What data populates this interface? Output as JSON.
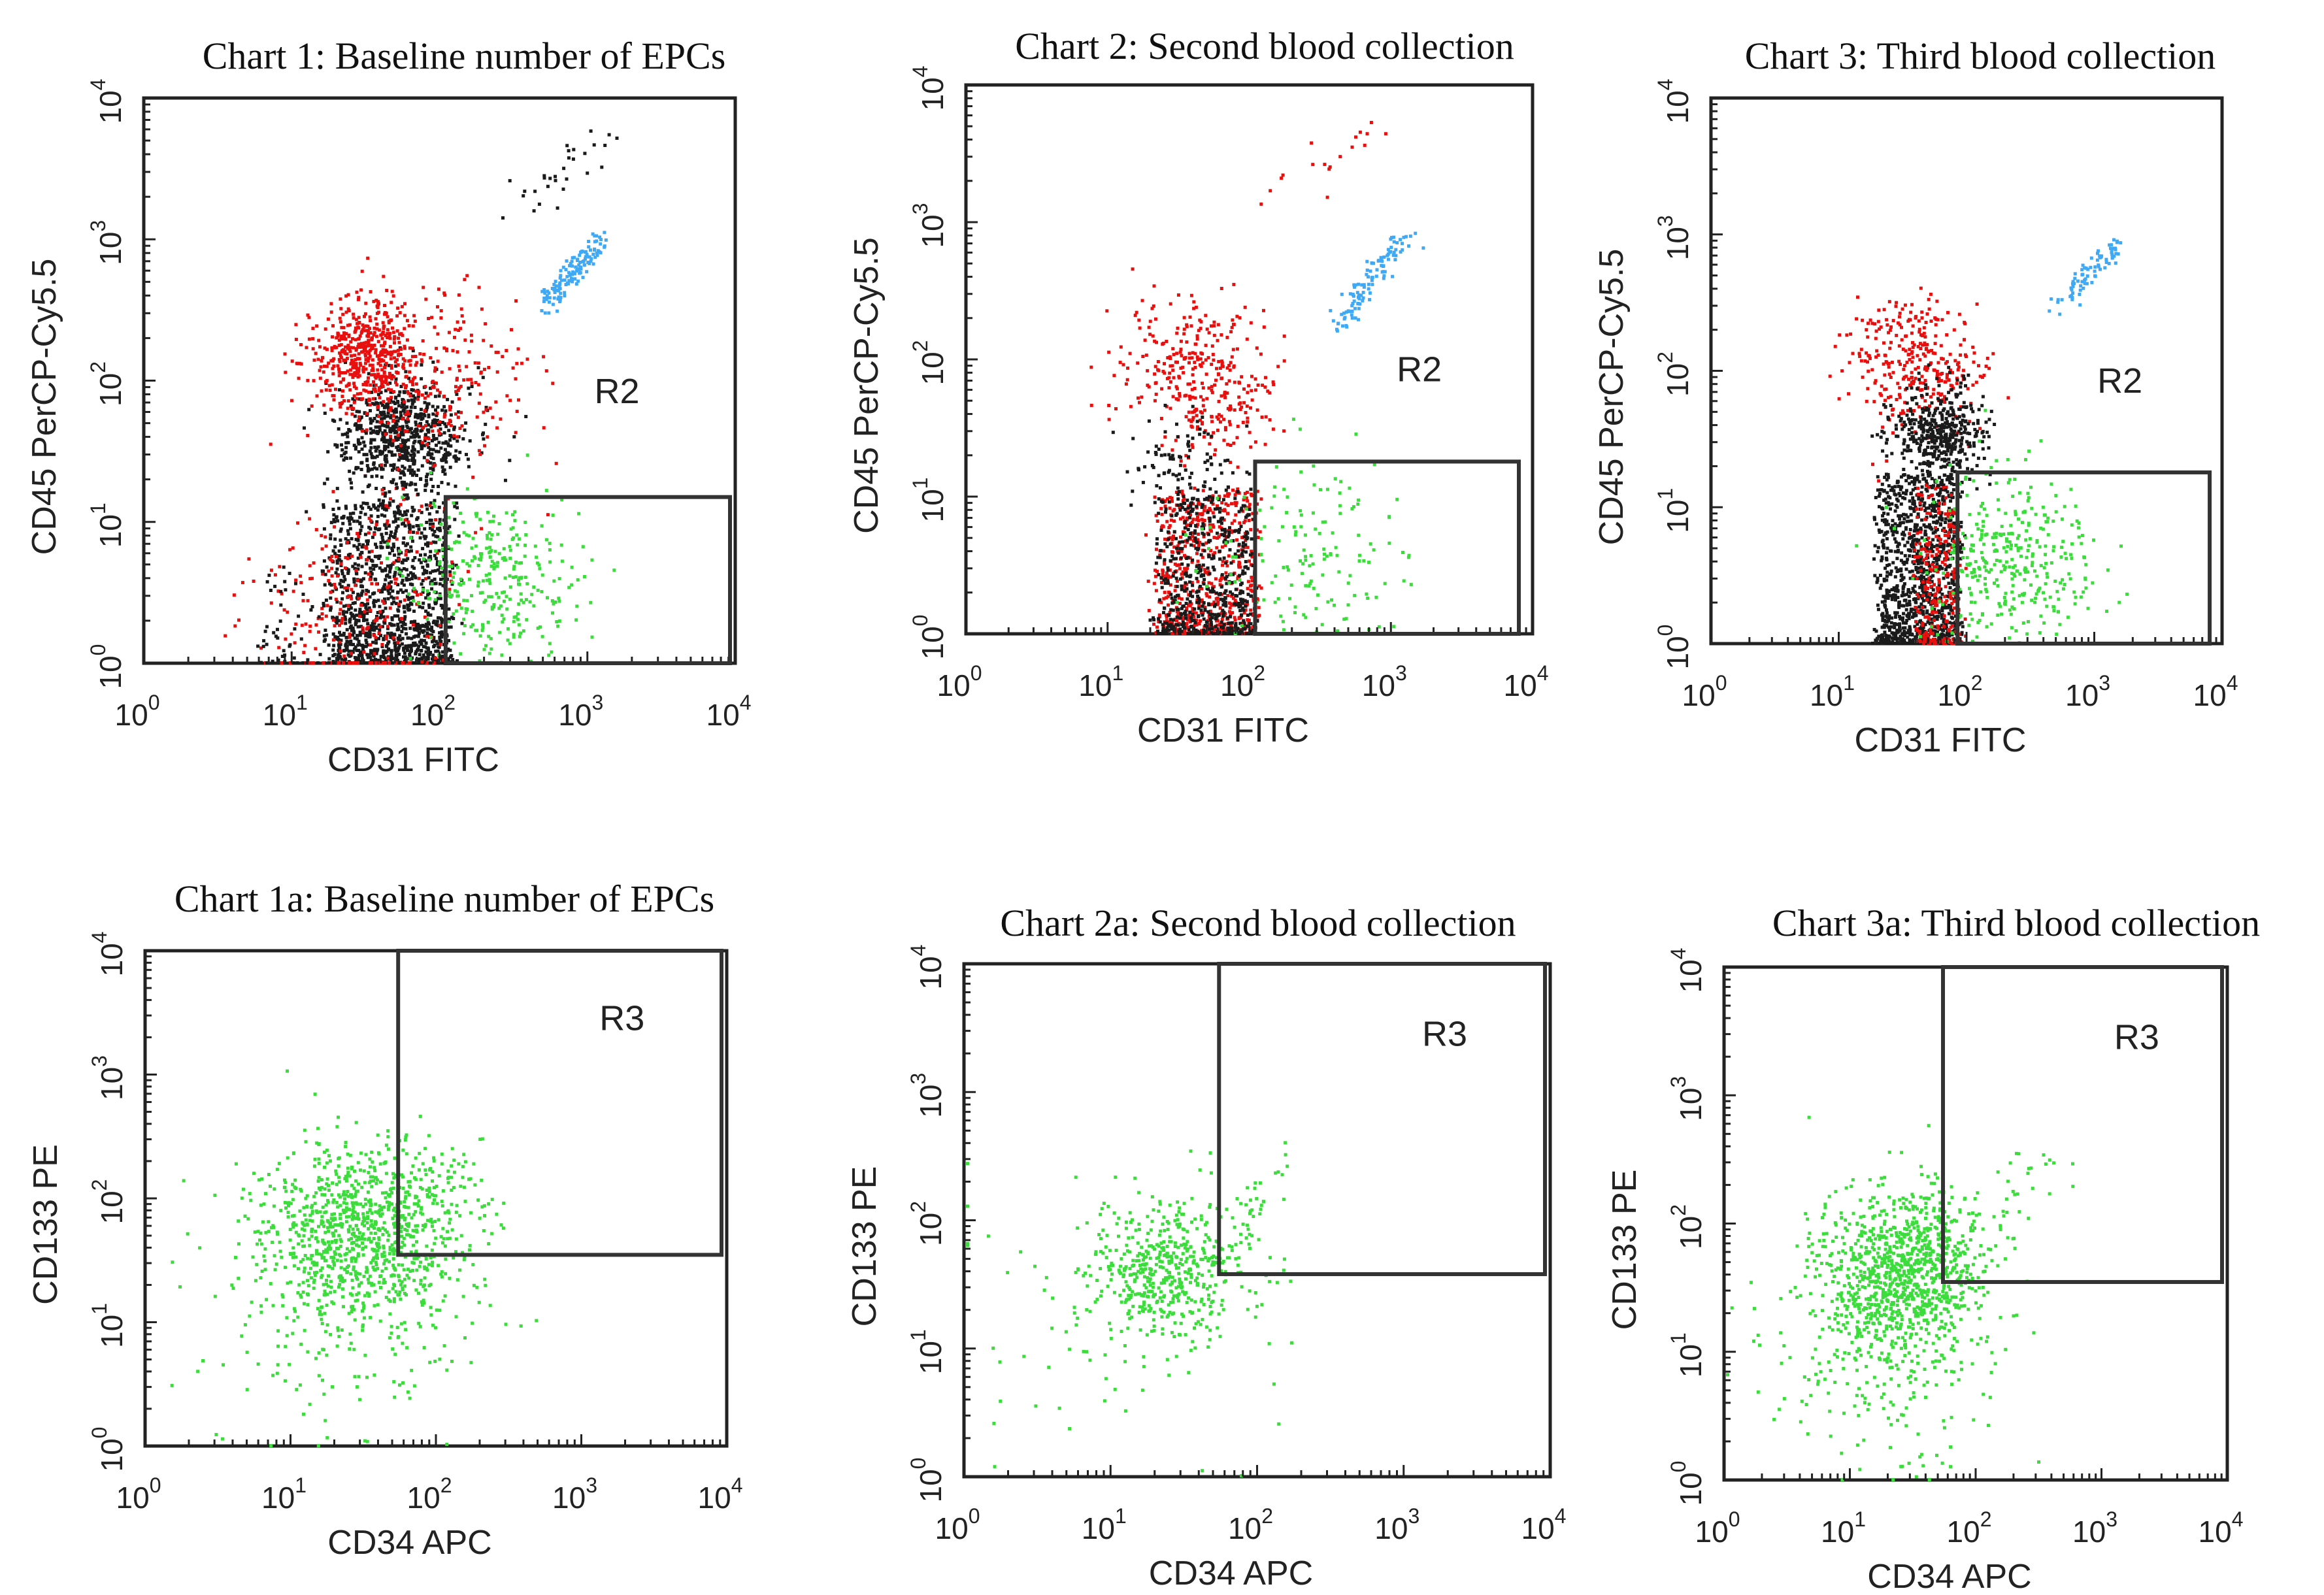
{
  "colors": {
    "black_events": "#1a1a1a",
    "red_events": "#e8100f",
    "green_events": "#3ddc3d",
    "blue_events": "#3fa9f5",
    "frame": "#222222"
  },
  "chart_data": [
    {
      "id": "chart1",
      "type": "scatter",
      "title": "Chart 1: Baseline number of EPCs",
      "xlabel": "CD31 FITC",
      "ylabel": "CD45 PerCP-Cy5.5",
      "scale": "log",
      "xlim": [
        1,
        10000
      ],
      "ylim": [
        1,
        10000
      ],
      "x_ticks": [
        "10",
        "10",
        "10",
        "10",
        "10"
      ],
      "x_tick_exps": [
        "0",
        "1",
        "2",
        "3",
        "4"
      ],
      "y_ticks": [
        "10",
        "10",
        "10",
        "10",
        "10"
      ],
      "y_tick_exps": [
        "0",
        "1",
        "2",
        "3",
        "4"
      ],
      "gate": {
        "name": "R2",
        "x_range": [
          110,
          10000
        ],
        "y_range": [
          1,
          15
        ]
      },
      "populations": [
        {
          "color": "black",
          "shape": "band",
          "x": [
            18,
            120
          ],
          "y": [
            1,
            14
          ],
          "count": 1200,
          "spread": 0.2
        },
        {
          "color": "red",
          "shape": "blob",
          "x": [
            30,
            1
          ],
          "y": [
            3,
            1
          ],
          "count": 260,
          "spread": 0.35
        },
        {
          "color": "black",
          "shape": "blob",
          "x": [
            55,
            1
          ],
          "y": [
            40,
            1
          ],
          "count": 700,
          "spread": 0.22
        },
        {
          "color": "red",
          "shape": "blob",
          "x": [
            30,
            1
          ],
          "y": [
            150,
            1
          ],
          "count": 500,
          "spread": 0.2
        },
        {
          "color": "red",
          "shape": "blob",
          "x": [
            100,
            1
          ],
          "y": [
            100,
            1
          ],
          "count": 220,
          "spread": 0.3
        },
        {
          "color": "green",
          "shape": "blob",
          "x": [
            220,
            1
          ],
          "y": [
            4,
            1
          ],
          "count": 320,
          "spread": 0.3
        },
        {
          "color": "blue",
          "shape": "line",
          "x": [
            500,
            1200
          ],
          "y": [
            350,
            1000
          ],
          "count": 130,
          "spread": 0.04
        },
        {
          "color": "black",
          "shape": "line",
          "x": [
            300,
            1500
          ],
          "y": [
            1500,
            6000
          ],
          "count": 30,
          "spread": 0.08
        },
        {
          "color": "black",
          "shape": "band",
          "x": [
            6,
            20
          ],
          "y": [
            1,
            5
          ],
          "count": 60,
          "spread": 0.2
        }
      ]
    },
    {
      "id": "chart2",
      "type": "scatter",
      "title": "Chart 2: Second blood collection",
      "xlabel": "CD31 FITC",
      "ylabel": "CD45 PerCP-Cy5.5",
      "scale": "log",
      "xlim": [
        1,
        10000
      ],
      "ylim": [
        1,
        10000
      ],
      "x_ticks": [
        "10",
        "10",
        "10",
        "10",
        "10"
      ],
      "x_tick_exps": [
        "0",
        "1",
        "2",
        "3",
        "4"
      ],
      "y_ticks": [
        "10",
        "10",
        "10",
        "10",
        "10"
      ],
      "y_tick_exps": [
        "0",
        "1",
        "2",
        "3",
        "4"
      ],
      "gate": {
        "name": "R2",
        "x_range": [
          110,
          8000
        ],
        "y_range": [
          1,
          18
        ]
      },
      "populations": [
        {
          "color": "red",
          "shape": "band",
          "x": [
            22,
            110
          ],
          "y": [
            1,
            12
          ],
          "count": 650,
          "spread": 0.2
        },
        {
          "color": "black",
          "shape": "band",
          "x": [
            22,
            100
          ],
          "y": [
            1,
            10
          ],
          "count": 500,
          "spread": 0.2
        },
        {
          "color": "red",
          "shape": "blob",
          "x": [
            35,
            1
          ],
          "y": [
            100,
            1
          ],
          "count": 220,
          "spread": 0.25
        },
        {
          "color": "red",
          "shape": "blob",
          "x": [
            60,
            1
          ],
          "y": [
            45,
            1
          ],
          "count": 120,
          "spread": 0.2
        },
        {
          "color": "black",
          "shape": "blob",
          "x": [
            35,
            1
          ],
          "y": [
            15,
            1
          ],
          "count": 120,
          "spread": 0.2
        },
        {
          "color": "green",
          "shape": "blob",
          "x": [
            250,
            1
          ],
          "y": [
            4,
            1
          ],
          "count": 150,
          "spread": 0.35
        },
        {
          "color": "blue",
          "shape": "line",
          "x": [
            400,
            1200
          ],
          "y": [
            180,
            800
          ],
          "count": 110,
          "spread": 0.04
        },
        {
          "color": "red",
          "shape": "line",
          "x": [
            150,
            900
          ],
          "y": [
            1500,
            6000
          ],
          "count": 18,
          "spread": 0.08
        }
      ]
    },
    {
      "id": "chart3",
      "type": "scatter",
      "title": "Chart 3: Third blood collection",
      "xlabel": "CD31 FITC",
      "ylabel": "CD45 PerCP-Cy5.5",
      "scale": "log",
      "xlim": [
        1,
        10000
      ],
      "ylim": [
        1,
        10000
      ],
      "x_ticks": [
        "10",
        "10",
        "10",
        "10",
        "10"
      ],
      "x_tick_exps": [
        "0",
        "1",
        "2",
        "3",
        "4"
      ],
      "y_ticks": [
        "10",
        "10",
        "10",
        "10",
        "10"
      ],
      "y_tick_exps": [
        "0",
        "1",
        "2",
        "3",
        "4"
      ],
      "gate": {
        "name": "R2",
        "x_range": [
          85,
          8000
        ],
        "y_range": [
          1,
          18
        ]
      },
      "populations": [
        {
          "color": "black",
          "shape": "band",
          "x": [
            20,
            85
          ],
          "y": [
            1,
            18
          ],
          "count": 1100,
          "spread": 0.2
        },
        {
          "color": "red",
          "shape": "band",
          "x": [
            40,
            85
          ],
          "y": [
            1,
            15
          ],
          "count": 260,
          "spread": 0.2
        },
        {
          "color": "red",
          "shape": "blob",
          "x": [
            40,
            1
          ],
          "y": [
            110,
            1
          ],
          "count": 320,
          "spread": 0.25
        },
        {
          "color": "black",
          "shape": "blob",
          "x": [
            60,
            1
          ],
          "y": [
            35,
            1
          ],
          "count": 450,
          "spread": 0.18
        },
        {
          "color": "green",
          "shape": "blob",
          "x": [
            220,
            1
          ],
          "y": [
            4,
            1
          ],
          "count": 360,
          "spread": 0.33
        },
        {
          "color": "blue",
          "shape": "line",
          "x": [
            500,
            1500
          ],
          "y": [
            300,
            900
          ],
          "count": 80,
          "spread": 0.04
        }
      ]
    },
    {
      "id": "chart1a",
      "type": "scatter",
      "title": "Chart 1a: Baseline number of EPCs",
      "xlabel": "CD34 APC",
      "ylabel": "CD133 PE",
      "scale": "log",
      "xlim": [
        1,
        10000
      ],
      "ylim": [
        1,
        10000
      ],
      "x_ticks": [
        "10",
        "10",
        "10",
        "10",
        "10"
      ],
      "x_tick_exps": [
        "0",
        "1",
        "2",
        "3",
        "4"
      ],
      "y_ticks": [
        "10",
        "10",
        "10",
        "10",
        "10"
      ],
      "y_tick_exps": [
        "0",
        "1",
        "2",
        "3",
        "4"
      ],
      "gate": {
        "name": "R3",
        "x_range": [
          55,
          10000
        ],
        "y_range": [
          35,
          10000
        ]
      },
      "populations": [
        {
          "color": "green",
          "shape": "blob",
          "x": [
            30,
            1
          ],
          "y": [
            55,
            1
          ],
          "count": 900,
          "spread": 0.35
        },
        {
          "color": "green",
          "shape": "blob",
          "x": [
            20,
            1
          ],
          "y": [
            15,
            1
          ],
          "count": 250,
          "spread": 0.5
        },
        {
          "color": "green",
          "shape": "line",
          "x": [
            60,
            150
          ],
          "y": [
            80,
            250
          ],
          "count": 40,
          "spread": 0.1
        }
      ]
    },
    {
      "id": "chart2a",
      "type": "scatter",
      "title": "Chart 2a: Second blood collection",
      "xlabel": "CD34 APC",
      "ylabel": "CD133 PE",
      "scale": "log",
      "xlim": [
        1,
        10000
      ],
      "ylim": [
        1,
        10000
      ],
      "x_ticks": [
        "10",
        "10",
        "10",
        "10",
        "10"
      ],
      "x_tick_exps": [
        "0",
        "1",
        "2",
        "3",
        "4"
      ],
      "y_ticks": [
        "10",
        "10",
        "10",
        "10",
        "10"
      ],
      "y_tick_exps": [
        "0",
        "1",
        "2",
        "3",
        "4"
      ],
      "gate": {
        "name": "R3",
        "x_range": [
          55,
          10000
        ],
        "y_range": [
          38,
          10000
        ]
      },
      "populations": [
        {
          "color": "green",
          "shape": "blob",
          "x": [
            25,
            1
          ],
          "y": [
            45,
            1
          ],
          "count": 500,
          "spread": 0.28
        },
        {
          "color": "green",
          "shape": "blob",
          "x": [
            8,
            1
          ],
          "y": [
            15,
            1
          ],
          "count": 80,
          "spread": 0.5
        },
        {
          "color": "green",
          "shape": "line",
          "x": [
            60,
            150
          ],
          "y": [
            80,
            350
          ],
          "count": 20,
          "spread": 0.1
        }
      ]
    },
    {
      "id": "chart3a",
      "type": "scatter",
      "title": "Chart 3a: Third blood collection",
      "xlabel": "CD34 APC",
      "ylabel": "CD133 PE",
      "scale": "log",
      "xlim": [
        1,
        10000
      ],
      "ylim": [
        1,
        10000
      ],
      "x_ticks": [
        "10",
        "10",
        "10",
        "10",
        "10"
      ],
      "x_tick_exps": [
        "0",
        "1",
        "2",
        "3",
        "4"
      ],
      "y_ticks": [
        "10",
        "10",
        "10",
        "10",
        "10"
      ],
      "y_tick_exps": [
        "0",
        "1",
        "2",
        "3",
        "4"
      ],
      "gate": {
        "name": "R3",
        "x_range": [
          55,
          10000
        ],
        "y_range": [
          35,
          10000
        ]
      },
      "populations": [
        {
          "color": "green",
          "shape": "blob",
          "x": [
            25,
            1
          ],
          "y": [
            45,
            1
          ],
          "count": 1000,
          "spread": 0.33
        },
        {
          "color": "green",
          "shape": "blob",
          "x": [
            18,
            1
          ],
          "y": [
            8,
            1
          ],
          "count": 200,
          "spread": 0.45
        },
        {
          "color": "green",
          "shape": "line",
          "x": [
            60,
            400
          ],
          "y": [
            70,
            300
          ],
          "count": 40,
          "spread": 0.12
        }
      ]
    }
  ]
}
